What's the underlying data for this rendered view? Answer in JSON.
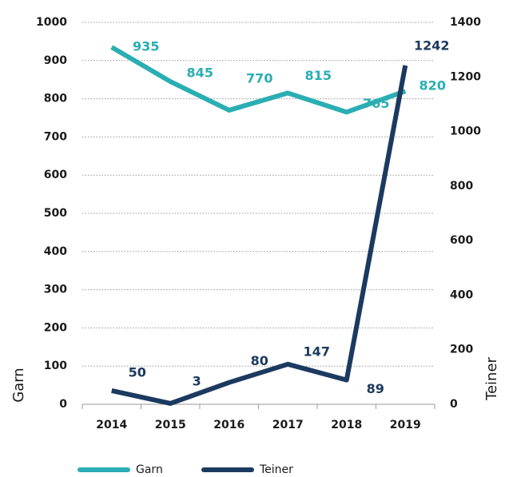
{
  "chart_data": {
    "type": "line",
    "categories": [
      "2014",
      "2015",
      "2016",
      "2017",
      "2018",
      "2019"
    ],
    "series": [
      {
        "name": "Garn",
        "color": "#2aaeb3",
        "values": [
          935,
          845,
          770,
          815,
          765,
          820
        ]
      },
      {
        "name": "Teiner",
        "color": "#1c3a60",
        "axis": "y2",
        "values": [
          50,
          3,
          80,
          147,
          89,
          1242
        ]
      }
    ],
    "ylabel": "Garn",
    "y2label": "Teiner",
    "ylim": [
      0,
      1000
    ],
    "yticks": [
      0,
      100,
      200,
      300,
      400,
      500,
      600,
      700,
      800,
      900,
      1000
    ],
    "y2lim": [
      0,
      1400
    ],
    "y2ticks": [
      0,
      200,
      400,
      600,
      800,
      1000,
      1200,
      1400
    ],
    "grid": true,
    "legend": "bottom"
  }
}
